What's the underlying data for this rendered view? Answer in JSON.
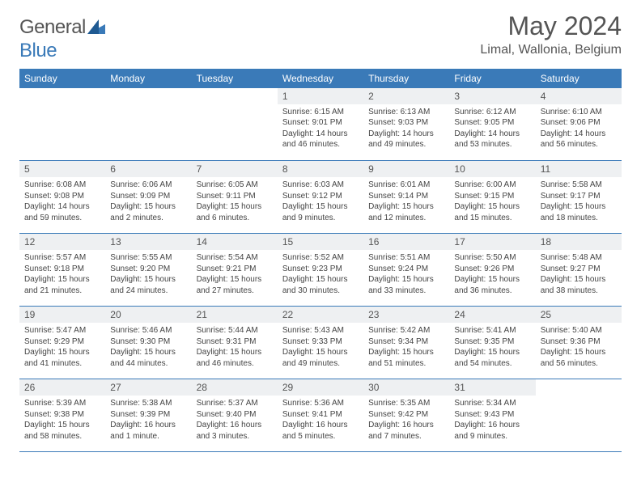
{
  "logo": {
    "general": "General",
    "blue": "Blue"
  },
  "header": {
    "title": "May 2024",
    "location": "Limal, Wallonia, Belgium"
  },
  "colors": {
    "header_bg": "#3a7ab8",
    "header_text": "#ffffff",
    "daynum_bg": "#eef0f2",
    "border": "#3a7ab8",
    "page_bg": "#ffffff",
    "text": "#444444",
    "title_color": "#555555"
  },
  "weekdays": [
    "Sunday",
    "Monday",
    "Tuesday",
    "Wednesday",
    "Thursday",
    "Friday",
    "Saturday"
  ],
  "calendar_type": "month_grid",
  "first_weekday_index": 3,
  "days": [
    {
      "n": "1",
      "sunrise": "6:15 AM",
      "sunset": "9:01 PM",
      "daylight": "14 hours and 46 minutes."
    },
    {
      "n": "2",
      "sunrise": "6:13 AM",
      "sunset": "9:03 PM",
      "daylight": "14 hours and 49 minutes."
    },
    {
      "n": "3",
      "sunrise": "6:12 AM",
      "sunset": "9:05 PM",
      "daylight": "14 hours and 53 minutes."
    },
    {
      "n": "4",
      "sunrise": "6:10 AM",
      "sunset": "9:06 PM",
      "daylight": "14 hours and 56 minutes."
    },
    {
      "n": "5",
      "sunrise": "6:08 AM",
      "sunset": "9:08 PM",
      "daylight": "14 hours and 59 minutes."
    },
    {
      "n": "6",
      "sunrise": "6:06 AM",
      "sunset": "9:09 PM",
      "daylight": "15 hours and 2 minutes."
    },
    {
      "n": "7",
      "sunrise": "6:05 AM",
      "sunset": "9:11 PM",
      "daylight": "15 hours and 6 minutes."
    },
    {
      "n": "8",
      "sunrise": "6:03 AM",
      "sunset": "9:12 PM",
      "daylight": "15 hours and 9 minutes."
    },
    {
      "n": "9",
      "sunrise": "6:01 AM",
      "sunset": "9:14 PM",
      "daylight": "15 hours and 12 minutes."
    },
    {
      "n": "10",
      "sunrise": "6:00 AM",
      "sunset": "9:15 PM",
      "daylight": "15 hours and 15 minutes."
    },
    {
      "n": "11",
      "sunrise": "5:58 AM",
      "sunset": "9:17 PM",
      "daylight": "15 hours and 18 minutes."
    },
    {
      "n": "12",
      "sunrise": "5:57 AM",
      "sunset": "9:18 PM",
      "daylight": "15 hours and 21 minutes."
    },
    {
      "n": "13",
      "sunrise": "5:55 AM",
      "sunset": "9:20 PM",
      "daylight": "15 hours and 24 minutes."
    },
    {
      "n": "14",
      "sunrise": "5:54 AM",
      "sunset": "9:21 PM",
      "daylight": "15 hours and 27 minutes."
    },
    {
      "n": "15",
      "sunrise": "5:52 AM",
      "sunset": "9:23 PM",
      "daylight": "15 hours and 30 minutes."
    },
    {
      "n": "16",
      "sunrise": "5:51 AM",
      "sunset": "9:24 PM",
      "daylight": "15 hours and 33 minutes."
    },
    {
      "n": "17",
      "sunrise": "5:50 AM",
      "sunset": "9:26 PM",
      "daylight": "15 hours and 36 minutes."
    },
    {
      "n": "18",
      "sunrise": "5:48 AM",
      "sunset": "9:27 PM",
      "daylight": "15 hours and 38 minutes."
    },
    {
      "n": "19",
      "sunrise": "5:47 AM",
      "sunset": "9:29 PM",
      "daylight": "15 hours and 41 minutes."
    },
    {
      "n": "20",
      "sunrise": "5:46 AM",
      "sunset": "9:30 PM",
      "daylight": "15 hours and 44 minutes."
    },
    {
      "n": "21",
      "sunrise": "5:44 AM",
      "sunset": "9:31 PM",
      "daylight": "15 hours and 46 minutes."
    },
    {
      "n": "22",
      "sunrise": "5:43 AM",
      "sunset": "9:33 PM",
      "daylight": "15 hours and 49 minutes."
    },
    {
      "n": "23",
      "sunrise": "5:42 AM",
      "sunset": "9:34 PM",
      "daylight": "15 hours and 51 minutes."
    },
    {
      "n": "24",
      "sunrise": "5:41 AM",
      "sunset": "9:35 PM",
      "daylight": "15 hours and 54 minutes."
    },
    {
      "n": "25",
      "sunrise": "5:40 AM",
      "sunset": "9:36 PM",
      "daylight": "15 hours and 56 minutes."
    },
    {
      "n": "26",
      "sunrise": "5:39 AM",
      "sunset": "9:38 PM",
      "daylight": "15 hours and 58 minutes."
    },
    {
      "n": "27",
      "sunrise": "5:38 AM",
      "sunset": "9:39 PM",
      "daylight": "16 hours and 1 minute."
    },
    {
      "n": "28",
      "sunrise": "5:37 AM",
      "sunset": "9:40 PM",
      "daylight": "16 hours and 3 minutes."
    },
    {
      "n": "29",
      "sunrise": "5:36 AM",
      "sunset": "9:41 PM",
      "daylight": "16 hours and 5 minutes."
    },
    {
      "n": "30",
      "sunrise": "5:35 AM",
      "sunset": "9:42 PM",
      "daylight": "16 hours and 7 minutes."
    },
    {
      "n": "31",
      "sunrise": "5:34 AM",
      "sunset": "9:43 PM",
      "daylight": "16 hours and 9 minutes."
    }
  ],
  "labels": {
    "sunrise": "Sunrise:",
    "sunset": "Sunset:",
    "daylight": "Daylight:"
  }
}
